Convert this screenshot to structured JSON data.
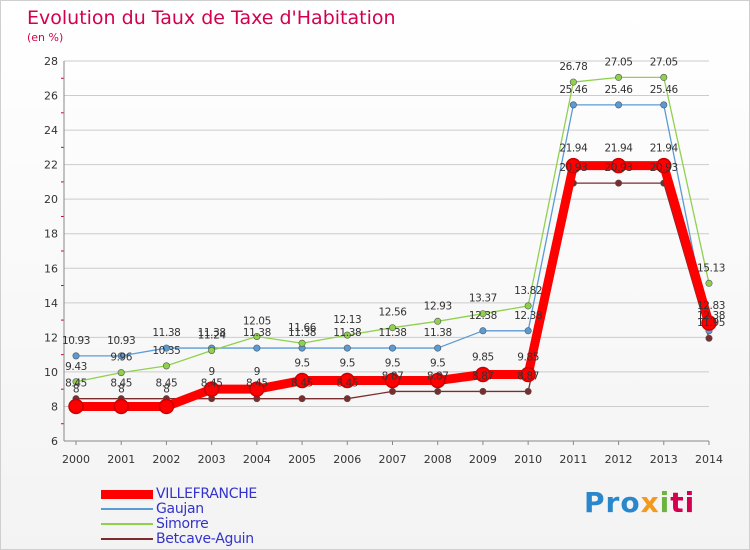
{
  "header": {
    "title": "Evolution du Taux de Taxe d'Habitation",
    "unit": "(en %)"
  },
  "logo": {
    "part1": "Pro",
    "part2": "x",
    "part3": "i",
    "part4": "ti"
  },
  "colors": {
    "title": "#d4004f",
    "grid": "#cccccc",
    "axis_tick_marks": "#cc0033"
  },
  "chart_data": {
    "type": "line",
    "title": "Evolution du Taux de Taxe d'Habitation",
    "ylabel": "(en %)",
    "xlabel": "",
    "x": [
      "2000",
      "2001",
      "2002",
      "2003",
      "2004",
      "2005",
      "2006",
      "2007",
      "2008",
      "2009",
      "2010",
      "2011",
      "2012",
      "2013",
      "2014"
    ],
    "ylim": [
      6,
      28
    ],
    "yticks": [
      6,
      8,
      10,
      12,
      14,
      16,
      18,
      20,
      22,
      24,
      26,
      28
    ],
    "grid": "horizontal",
    "legend_position": "bottom-left",
    "series": [
      {
        "name": "VILLEFRANCHE",
        "color": "#ff0000",
        "values": [
          8,
          8,
          8,
          9,
          9,
          9.5,
          9.5,
          9.5,
          9.5,
          9.85,
          9.85,
          21.94,
          21.94,
          21.94,
          12.83
        ],
        "labels": [
          "8",
          "8",
          "8",
          "9",
          "9",
          "9.5",
          "9.5",
          "9.5",
          "9.5",
          "9.85",
          "9.85",
          "21.94",
          "21.94",
          "21.94",
          "12.83"
        ]
      },
      {
        "name": "Gaujan",
        "color": "#5b9bd5",
        "values": [
          10.93,
          10.93,
          11.38,
          11.38,
          11.38,
          11.38,
          11.38,
          11.38,
          11.38,
          12.38,
          12.38,
          25.46,
          25.46,
          25.46,
          12.38
        ],
        "labels": [
          "10.93",
          "10.93",
          "11.38",
          "11.38",
          "11.38",
          "11.38",
          "11.38",
          "11.38",
          "11.38",
          "12.38",
          "12.38",
          "25.46",
          "25.46",
          "25.46",
          "12.38"
        ]
      },
      {
        "name": "Simorre",
        "color": "#8fd14f",
        "values": [
          9.43,
          9.96,
          10.35,
          11.24,
          12.05,
          11.66,
          12.13,
          12.56,
          12.93,
          13.37,
          13.82,
          26.78,
          27.05,
          27.05,
          15.13
        ],
        "labels": [
          "9.43",
          "9.96",
          "10.35",
          "11.24",
          "12.05",
          "11.66",
          "12.13",
          "12.56",
          "12.93",
          "13.37",
          "13.82",
          "26.78",
          "27.05",
          "27.05",
          "15.13"
        ]
      },
      {
        "name": "Betcave-Aguin",
        "color": "#7b2c2c",
        "values": [
          8.45,
          8.45,
          8.45,
          8.45,
          8.45,
          8.45,
          8.45,
          8.87,
          8.87,
          8.87,
          8.87,
          20.93,
          20.93,
          20.93,
          11.95
        ],
        "labels": [
          "8.45",
          "8.45",
          "8.45",
          "8.45",
          "8.45",
          "8.45",
          "8.45",
          "8.87",
          "8.87",
          "8.87",
          "8.87",
          "20.93",
          "20.93",
          "20.93",
          "11.95"
        ]
      }
    ]
  }
}
